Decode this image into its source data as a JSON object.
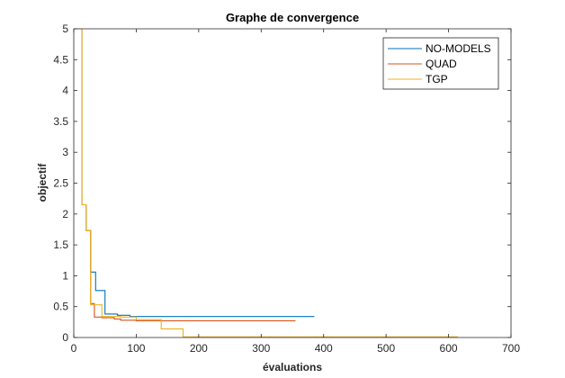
{
  "chart_data": {
    "type": "line",
    "step": true,
    "title": "Graphe de convergence",
    "xlabel": "évaluations",
    "ylabel": "objectif",
    "xlim": [
      0,
      700
    ],
    "ylim": [
      0,
      5
    ],
    "xticks": [
      0,
      100,
      200,
      300,
      400,
      500,
      600,
      700
    ],
    "yticks": [
      0,
      0.5,
      1,
      1.5,
      2,
      2.5,
      3,
      3.5,
      4,
      4.5,
      5
    ],
    "xtick_labels": [
      "0",
      "100",
      "200",
      "300",
      "400",
      "500",
      "600",
      "700"
    ],
    "ytick_labels": [
      "0",
      "0.5",
      "1",
      "1.5",
      "2",
      "2.5",
      "3",
      "3.5",
      "4",
      "4.5",
      "5"
    ],
    "grid": false,
    "legend_position": "top-right",
    "series": [
      {
        "name": "NO-MODELS",
        "color": "#0072BD",
        "x": [
          0,
          13,
          20,
          27,
          35,
          50,
          70,
          90,
          385
        ],
        "y": [
          5,
          2.15,
          1.73,
          1.06,
          0.76,
          0.38,
          0.36,
          0.34,
          0.34
        ]
      },
      {
        "name": "QUAD",
        "color": "#D95319",
        "x": [
          0,
          13,
          20,
          27,
          33,
          45,
          65,
          75,
          100,
          355
        ],
        "y": [
          5,
          2.15,
          1.73,
          0.55,
          0.33,
          0.32,
          0.3,
          0.28,
          0.27,
          0.27
        ]
      },
      {
        "name": "TGP",
        "color": "#EDB120",
        "x": [
          0,
          13,
          20,
          27,
          30,
          45,
          75,
          100,
          140,
          175,
          615
        ],
        "y": [
          5,
          2.15,
          1.73,
          0.53,
          0.53,
          0.34,
          0.33,
          0.29,
          0.14,
          0.01,
          0.01
        ]
      }
    ]
  }
}
